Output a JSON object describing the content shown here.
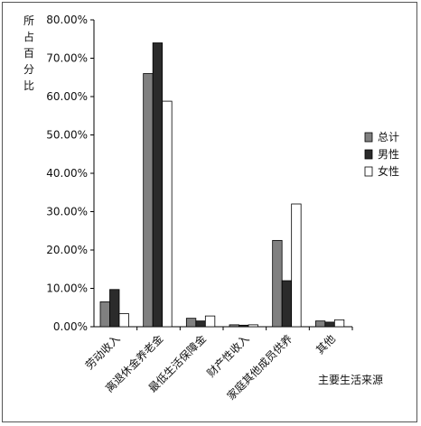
{
  "chart_data": {
    "type": "bar",
    "ylabel": "所占百分比",
    "xlabel": "主要生活来源",
    "ylim": [
      0,
      80
    ],
    "yticks": [
      "0.00%",
      "10.00%",
      "20.00%",
      "30.00%",
      "40.00%",
      "50.00%",
      "60.00%",
      "70.00%",
      "80.00%"
    ],
    "categories": [
      "劳动收入",
      "离退休金养老金",
      "最低生活保障金",
      "财产性收入",
      "家庭其他成员供养",
      "其他"
    ],
    "series": [
      {
        "name": "总计",
        "color": "#808080",
        "values": [
          6.5,
          66.0,
          2.2,
          0.5,
          22.5,
          1.5
        ]
      },
      {
        "name": "男性",
        "color": "#2b2b2b",
        "values": [
          9.7,
          74.0,
          1.5,
          0.4,
          12.0,
          1.2
        ]
      },
      {
        "name": "女性",
        "color": "#ffffff",
        "values": [
          3.4,
          58.8,
          2.8,
          0.5,
          32.0,
          1.8
        ]
      }
    ],
    "legend_position": "right",
    "grid": false
  }
}
